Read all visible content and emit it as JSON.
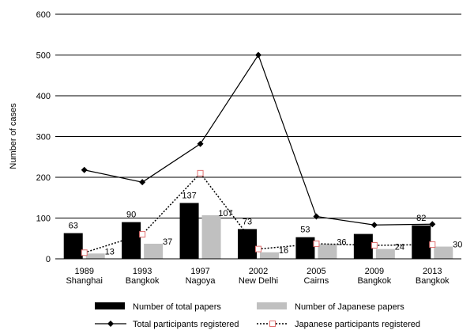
{
  "chart_data": {
    "type": "bar",
    "title": "",
    "ylabel": "Number of cases",
    "ylim": [
      0,
      600
    ],
    "yticks": [
      "0",
      "100",
      "200",
      "300",
      "400",
      "500",
      "600"
    ],
    "grid": true,
    "legend_position": "bottom",
    "categories": [
      [
        "1989",
        "Shanghai"
      ],
      [
        "1993",
        "Bangkok"
      ],
      [
        "1997",
        "Nagoya"
      ],
      [
        "2002",
        "New Delhi"
      ],
      [
        "2005",
        "Cairns"
      ],
      [
        "2009",
        "Bangkok"
      ],
      [
        "2013",
        "Bangkok"
      ]
    ],
    "series": [
      {
        "name": "Number of total papers",
        "kind": "bar",
        "color": "#000000",
        "values": [
          63,
          90,
          137,
          73,
          53,
          61,
          82
        ],
        "labels": [
          "63",
          "90",
          "137",
          "73",
          "53",
          "",
          "82"
        ]
      },
      {
        "name": "Number of Japanese papers",
        "kind": "bar",
        "color": "#c0c0c0",
        "values": [
          13,
          37,
          107,
          16,
          36,
          24,
          30
        ],
        "labels": [
          "13",
          "37",
          "107",
          "16",
          "36",
          "24",
          "30"
        ]
      },
      {
        "name": "Total participants registered",
        "kind": "line",
        "color": "#000000",
        "marker": "diamond",
        "values": [
          218,
          188,
          282,
          500,
          104,
          83,
          85
        ]
      },
      {
        "name": "Japanese participants registered",
        "kind": "dotted-line",
        "color": "#000000",
        "marker": "square",
        "marker_color": "#e07070",
        "values": [
          15,
          60,
          210,
          24,
          37,
          33,
          35
        ]
      }
    ]
  }
}
